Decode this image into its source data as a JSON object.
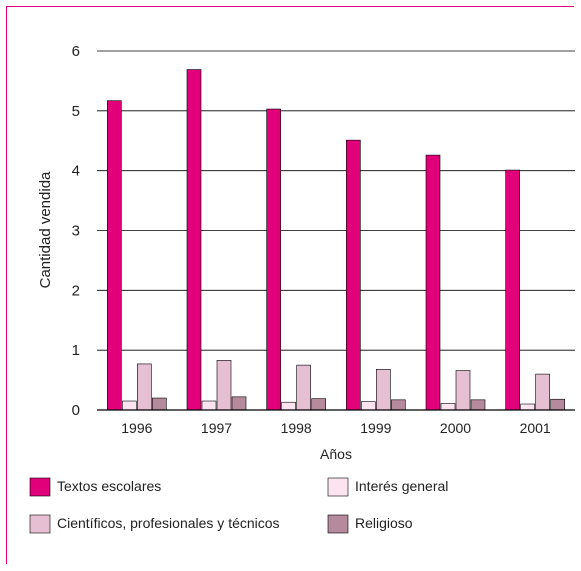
{
  "chart_data": {
    "type": "bar",
    "title": "",
    "xlabel": "Años",
    "ylabel": "Cantidad vendida",
    "ylim": [
      0,
      6
    ],
    "yticks": [
      0,
      1,
      2,
      3,
      4,
      5,
      6
    ],
    "grid": true,
    "legend_position": "bottom",
    "categories": [
      "1996",
      "1997",
      "1998",
      "1999",
      "2000",
      "2001"
    ],
    "series": [
      {
        "name": "Textos escolares",
        "color": "#e2007a",
        "values": [
          5.17,
          5.69,
          5.03,
          4.51,
          4.26,
          4.01
        ]
      },
      {
        "name": "Interés general",
        "color": "#fbe4f0",
        "values": [
          0.15,
          0.15,
          0.13,
          0.14,
          0.11,
          0.1
        ]
      },
      {
        "name": "Científicos, profesionales y técnicos",
        "color": "#e7bfd2",
        "values": [
          0.77,
          0.83,
          0.75,
          0.68,
          0.66,
          0.6
        ]
      },
      {
        "name": "Religioso",
        "color": "#b48a9c",
        "values": [
          0.2,
          0.22,
          0.19,
          0.17,
          0.17,
          0.18
        ]
      }
    ]
  }
}
